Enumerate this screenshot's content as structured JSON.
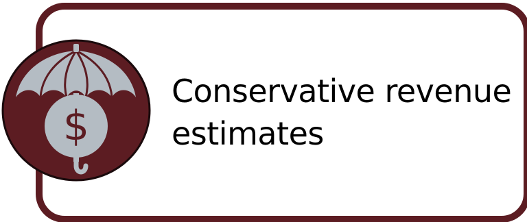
{
  "tile": {
    "caption": "Conservative revenue\nestimates",
    "icon": "umbrella-dollar-icon"
  },
  "colors": {
    "frame": "#5c1c22",
    "emblem_fill": "#5c1c22",
    "icon_fill": "#b4bcc3",
    "background": "#ffffff",
    "text": "#000000"
  }
}
